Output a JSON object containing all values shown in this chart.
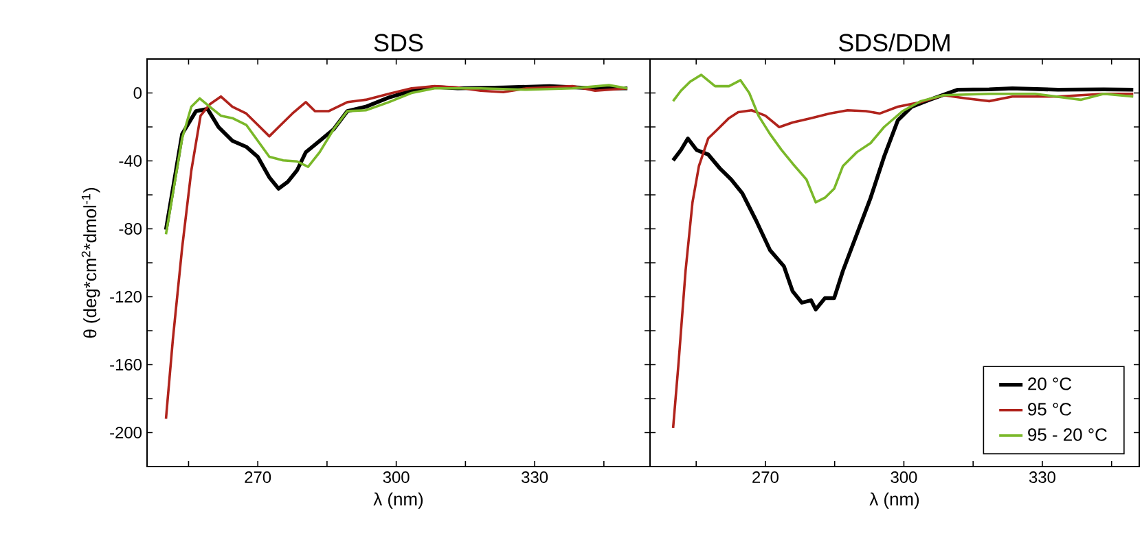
{
  "chart_data": [
    {
      "type": "line",
      "title": "SDS",
      "xlabel": "λ (nm)",
      "ylabel": "θ (deg*cm$^{2}$*dmol$^{-1}$)",
      "xlim": [
        246,
        355
      ],
      "ylim": [
        -220,
        20
      ],
      "xticks": [
        {
          "value": 255,
          "label": null
        },
        270,
        {
          "value": 285,
          "label": null
        },
        300,
        {
          "value": 315,
          "label": null
        },
        330,
        {
          "value": 345,
          "label": null
        }
      ],
      "yticks": [
        {
          "value": -220,
          "label": null
        },
        -200,
        {
          "value": -180,
          "label": null
        },
        -160,
        {
          "value": -140,
          "label": null
        },
        -120,
        {
          "value": -100,
          "label": null
        },
        -80,
        {
          "value": -60,
          "label": null
        },
        -40,
        {
          "value": -20,
          "label": null
        },
        0
      ],
      "legend": false,
      "marker": "none",
      "line_style": "solid",
      "series": [
        {
          "color": "#000000",
          "x": [
            250.1,
            253.6,
            256.6,
            259.1,
            261.5,
            264.5,
            267.5,
            270,
            272.5,
            274.5,
            276.5,
            278.5,
            280.4,
            283.4,
            286.4,
            289.4,
            293.4,
            298.4,
            303.3,
            308.3,
            313.3,
            323.2,
            333.2,
            343.1,
            350.1
          ],
          "values": [
            -80.5,
            -24.2,
            -10.7,
            -9.4,
            -20.1,
            -28.2,
            -31.7,
            -37.6,
            -49.7,
            -56.4,
            -52.3,
            -45.6,
            -34.9,
            -28.2,
            -21.5,
            -10.7,
            -8.1,
            -2.7,
            1.3,
            3.5,
            2.7,
            3.2,
            4,
            2.7,
            2.7
          ]
        },
        {
          "color": "#b0231c",
          "x": [
            250.1,
            251.6,
            253.6,
            255.6,
            257.6,
            259.6,
            262,
            264.5,
            267.5,
            270,
            272.5,
            274.5,
            277.5,
            280.4,
            282.4,
            285.4,
            289.4,
            293.4,
            298.4,
            303.3,
            308.3,
            313.3,
            318.3,
            323.2,
            328.2,
            338.2,
            343.1,
            350.1
          ],
          "values": [
            -191.9,
            -145,
            -91.3,
            -45.6,
            -13.4,
            -6.7,
            -2.1,
            -8.1,
            -12.1,
            -18.8,
            -25.5,
            -20.1,
            -12.1,
            -5.4,
            -10.7,
            -10.7,
            -5.4,
            -4,
            -0.5,
            2.7,
            4,
            3.2,
            1.3,
            0.5,
            2.7,
            4,
            1.3,
            2.7
          ]
        },
        {
          "color": "#7ab829",
          "x": [
            250.1,
            251.6,
            253.6,
            255.6,
            257.4,
            259.6,
            262,
            264.5,
            267.5,
            270,
            272.5,
            275.5,
            278.5,
            280.9,
            283.4,
            286.4,
            289.4,
            293.4,
            298.4,
            303.3,
            308.3,
            318.3,
            328.2,
            338.2,
            346.1,
            350.1
          ],
          "values": [
            -83.2,
            -59.1,
            -26.8,
            -8.1,
            -3.2,
            -8.1,
            -13.4,
            -14.8,
            -18.8,
            -28.2,
            -37.6,
            -39.7,
            -40.3,
            -43.5,
            -34.9,
            -21.5,
            -10.7,
            -10.2,
            -5.4,
            0,
            2.7,
            2.7,
            1.9,
            2.7,
            4.6,
            2.7
          ]
        }
      ]
    },
    {
      "type": "line",
      "title": "SDS/DDM",
      "xlabel": "λ (nm)",
      "xlim": [
        245,
        351
      ],
      "ylim": [
        -220,
        20
      ],
      "tick_labels": "x",
      "xticks": [
        {
          "value": 255,
          "label": null
        },
        270,
        {
          "value": 285,
          "label": null
        },
        300,
        {
          "value": 315,
          "label": null
        },
        330,
        {
          "value": 345,
          "label": null
        }
      ],
      "yticks": [
        {
          "value": -220,
          "label": null
        },
        {
          "value": -200,
          "label": null
        },
        {
          "value": -180,
          "label": null
        },
        {
          "value": -160,
          "label": null
        },
        {
          "value": -140,
          "label": null
        },
        {
          "value": -120,
          "label": null
        },
        {
          "value": -100,
          "label": null
        },
        {
          "value": -80,
          "label": null
        },
        {
          "value": -60,
          "label": null
        },
        {
          "value": -40,
          "label": null
        },
        {
          "value": -20,
          "label": null
        },
        {
          "value": 0,
          "label": null
        }
      ],
      "legend": "bottom right",
      "marker": "none",
      "line_style": "solid",
      "series": [
        {
          "name": "20 °C",
          "color": "#000000",
          "x": [
            250,
            251.7,
            253.2,
            255.1,
            257.6,
            260.1,
            262.6,
            265,
            268,
            271,
            274,
            275.9,
            277.9,
            279.9,
            280.9,
            282.9,
            284.9,
            286.8,
            289.8,
            292.8,
            295.7,
            298.7,
            301.7,
            305.6,
            311.6,
            318.5,
            323.5,
            333.4,
            343.3,
            349.7
          ],
          "values": [
            -39.7,
            -33.6,
            -26.8,
            -33.6,
            -36.2,
            -44.3,
            -51,
            -59.1,
            -75.2,
            -92.6,
            -102,
            -116.8,
            -123.5,
            -122.1,
            -127.5,
            -120.8,
            -120.8,
            -104.7,
            -83.2,
            -61.7,
            -37.6,
            -16.1,
            -8.1,
            -4,
            1.9,
            2.1,
            2.7,
            1.9,
            2.1,
            1.9
          ]
        },
        {
          "name": "95 °C",
          "color": "#b0231c",
          "x": [
            250,
            251.2,
            252.7,
            254.2,
            255.6,
            257.6,
            259.6,
            262.1,
            264.1,
            267,
            270,
            273,
            275.9,
            279.9,
            283.9,
            287.8,
            291.8,
            294.8,
            298.7,
            303.7,
            308.6,
            313.6,
            318.5,
            323.5,
            333.4,
            343.3,
            349.7
          ],
          "values": [
            -197.3,
            -158.4,
            -104.7,
            -64.4,
            -43,
            -26.8,
            -21.5,
            -14.8,
            -11.3,
            -10.2,
            -13.4,
            -20.1,
            -17.4,
            -14.8,
            -12.1,
            -10.2,
            -10.7,
            -12.1,
            -8.1,
            -5.4,
            -1.3,
            -3.2,
            -4.8,
            -2.1,
            -2.1,
            -0.5,
            -0.5
          ]
        },
        {
          "name": "95 - 20 °C",
          "color": "#7ab829",
          "x": [
            250,
            251.7,
            253.7,
            256.1,
            259.1,
            262.1,
            264.6,
            266.5,
            268.5,
            271,
            273.5,
            275.9,
            278.9,
            280.9,
            282.9,
            284.9,
            286.8,
            289.8,
            292.8,
            295.7,
            299.7,
            303.7,
            308.6,
            318.5,
            328.4,
            338.3,
            343.3,
            349.7
          ],
          "values": [
            -4.8,
            1.3,
            6.7,
            10.7,
            4,
            4,
            7.5,
            0,
            -13.4,
            -24.2,
            -33.6,
            -41.6,
            -51,
            -64.4,
            -61.7,
            -56.4,
            -43,
            -34.9,
            -29.5,
            -20.1,
            -10.7,
            -4.8,
            -1.3,
            -0.5,
            -0.5,
            -4,
            -0.5,
            -2.1
          ]
        }
      ]
    }
  ]
}
